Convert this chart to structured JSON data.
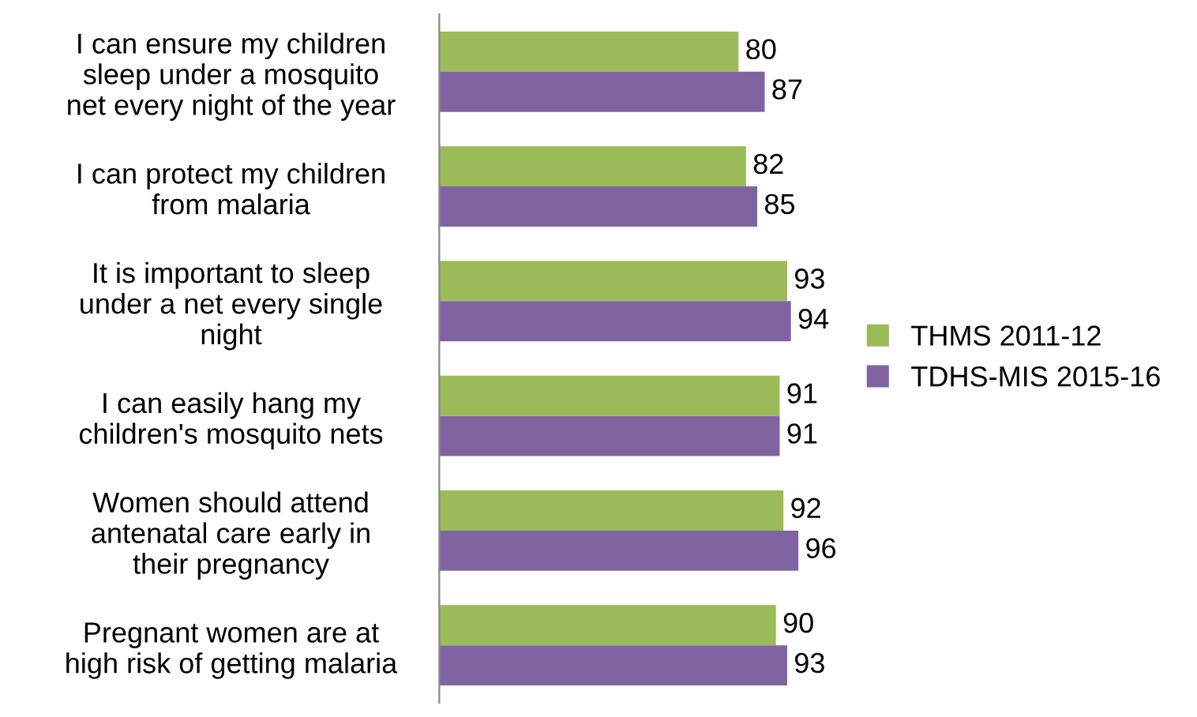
{
  "chart_data": {
    "type": "bar",
    "orientation": "horizontal",
    "categories": [
      "I can ensure my children\nsleep under a mosquito\nnet every night of the year",
      "I can protect my children\nfrom malaria",
      "It is important to sleep\nunder a net every single\nnight",
      "I can easily hang my\nchildren's mosquito nets",
      "Women should attend\nantenatal care early in\ntheir pregnancy",
      "Pregnant women are at\nhigh risk of getting malaria"
    ],
    "series": [
      {
        "name": "THMS 2011-12",
        "color": "#9bbb59",
        "values": [
          80,
          82,
          93,
          91,
          92,
          90
        ]
      },
      {
        "name": "TDHS-MIS 2015-16",
        "color": "#8064a2",
        "values": [
          87,
          85,
          94,
          91,
          96,
          93
        ]
      }
    ],
    "data_labels": true,
    "legend": "right",
    "grid": false
  }
}
